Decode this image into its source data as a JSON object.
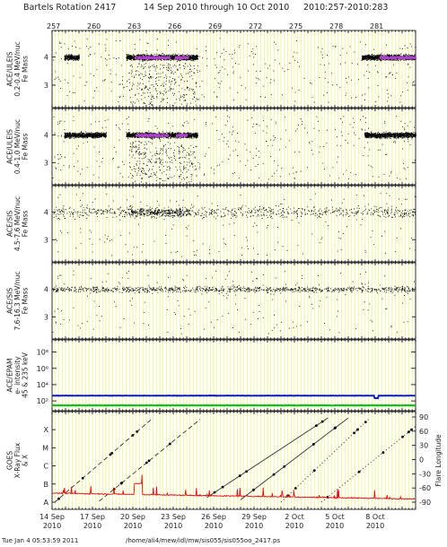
{
  "header": {
    "title": "Bartels Rotation 2417",
    "range": "14 Sep 2010 through 10 Oct 2010",
    "doy": "2010:257-2010:283"
  },
  "footer": {
    "timestamp": "Tue Jan  4 05:53:59 2011",
    "path": "/home/ali4/mew/idl/mw/sis055/sis055oo_2417.ps"
  },
  "colors": {
    "grid": "#f0f060",
    "ions_dense": "#b040d0",
    "electrons_high": "#1020c0",
    "electrons_low": "#10c020",
    "xray": "#e01010"
  },
  "chart_data": [
    {
      "type": "scatter",
      "id": "uleis_lo",
      "ylabel_lines": [
        "ACE/ULEIS",
        "0.2-0.4 MeV/nuc",
        "Fe Mass"
      ],
      "yticks": [
        3,
        4
      ],
      "ylim": [
        2.2,
        4.95
      ],
      "x_range_day_of_year": [
        257,
        284
      ],
      "description_series": [
        {
          "name": "",
          "center_mass": 4.0,
          "active_days": [
            [
              257.9,
              259.0
            ],
            [
              262.5,
              267.8
            ],
            [
              280.0,
              284.0
            ]
          ],
          "dense_days": [
            [
              263.1,
              265.7
            ],
            [
              266.1,
              267.1
            ],
            [
              281.3,
              284.0
            ]
          ]
        }
      ]
    },
    {
      "type": "scatter",
      "id": "uleis_hi",
      "ylabel_lines": [
        "ACE/ULEIS",
        "0.4-1.0 MeV/nuc",
        "Fe Mass"
      ],
      "yticks": [
        3,
        4
      ],
      "ylim": [
        2.2,
        4.95
      ],
      "x_range_day_of_year": [
        257,
        284
      ],
      "description_series": [
        {
          "name": "",
          "center_mass": 4.0,
          "active_days": [
            [
              257.9,
              261.0
            ],
            [
              262.5,
              267.8
            ],
            [
              280.2,
              284.0
            ]
          ],
          "dense_days": [
            [
              263.2,
              265.6
            ],
            [
              266.2,
              267.0
            ]
          ]
        }
      ]
    },
    {
      "type": "scatter",
      "id": "sis_lo",
      "ylabel_lines": [
        "ACE/SIS",
        "4.5-7.6 MeV/nuc",
        "Fe Mass"
      ],
      "yticks": [
        3,
        4
      ],
      "ylim": [
        2.2,
        4.95
      ],
      "x_range_day_of_year": [
        257,
        284
      ]
    },
    {
      "type": "scatter",
      "id": "sis_hi",
      "ylabel_lines": [
        "ACE/SIS",
        "7.6-16.3 MeV/nuc",
        "Fe Mass"
      ],
      "yticks": [
        3,
        4
      ],
      "ylim": [
        2.2,
        4.95
      ],
      "x_range_day_of_year": [
        257,
        284
      ]
    },
    {
      "type": "line",
      "id": "epam",
      "ylabel_lines": [
        "ACE/EPAM",
        "e- intensity",
        "45 & 235 keV"
      ],
      "yscale": "log",
      "ytick_labels": [
        "10²",
        "10⁴",
        "10⁶",
        "10⁸"
      ],
      "yticks": [
        2,
        4,
        6,
        8
      ],
      "ylim": [
        0.8,
        9.5
      ],
      "x_range_day_of_year": [
        257,
        284
      ],
      "series": [
        {
          "name": "",
          "color": "#1020c0",
          "log10_level": 2.65,
          "dip_day": 281.1
        },
        {
          "name": "",
          "color": "#10c020",
          "log10_level": 1.45
        }
      ]
    },
    {
      "type": "line",
      "id": "goes",
      "ylabel_lines": [
        "GOES",
        "X-Ray Flux",
        "& X"
      ],
      "left_ticks": [
        "A",
        "B",
        "C",
        "M",
        "X"
      ],
      "right_label": "Flare Longitude",
      "right_ticks": [
        -90,
        -60,
        -30,
        0,
        30,
        60,
        90
      ],
      "x_range_day_of_year": [
        257,
        284
      ],
      "flare_tracks": [
        {
          "style": "dashed",
          "start": [
            257.2,
            -90
          ],
          "end": [
            264.5,
            88
          ]
        },
        {
          "style": "dashed",
          "start": [
            260.5,
            -88
          ],
          "end": [
            268.0,
            85
          ]
        },
        {
          "style": "solid",
          "start": [
            268.5,
            -80
          ],
          "end": [
            277.5,
            88
          ]
        },
        {
          "style": "solid",
          "start": [
            271.0,
            -85
          ],
          "end": [
            279.0,
            88
          ]
        },
        {
          "style": "dotted",
          "start": [
            274.0,
            -90
          ],
          "end": [
            280.5,
            85
          ]
        },
        {
          "style": "dotted",
          "start": [
            277.0,
            -90
          ],
          "end": [
            284.0,
            70
          ]
        }
      ]
    }
  ],
  "x_axis": {
    "top_labels": [
      "257",
      "260",
      "263",
      "266",
      "269",
      "272",
      "275",
      "278",
      "281"
    ],
    "bottom_labels": [
      {
        "day": "14 Sep",
        "year": "2010"
      },
      {
        "day": "17 Sep",
        "year": "2010"
      },
      {
        "day": "20 Sep",
        "year": "2010"
      },
      {
        "day": "23 Sep",
        "year": "2010"
      },
      {
        "day": "26 Sep",
        "year": "2010"
      },
      {
        "day": "29 Sep",
        "year": "2010"
      },
      {
        "day": "2 Oct",
        "year": "2010"
      },
      {
        "day": "5 Oct",
        "year": "2010"
      },
      {
        "day": "8 Oct",
        "year": "2010"
      }
    ]
  }
}
